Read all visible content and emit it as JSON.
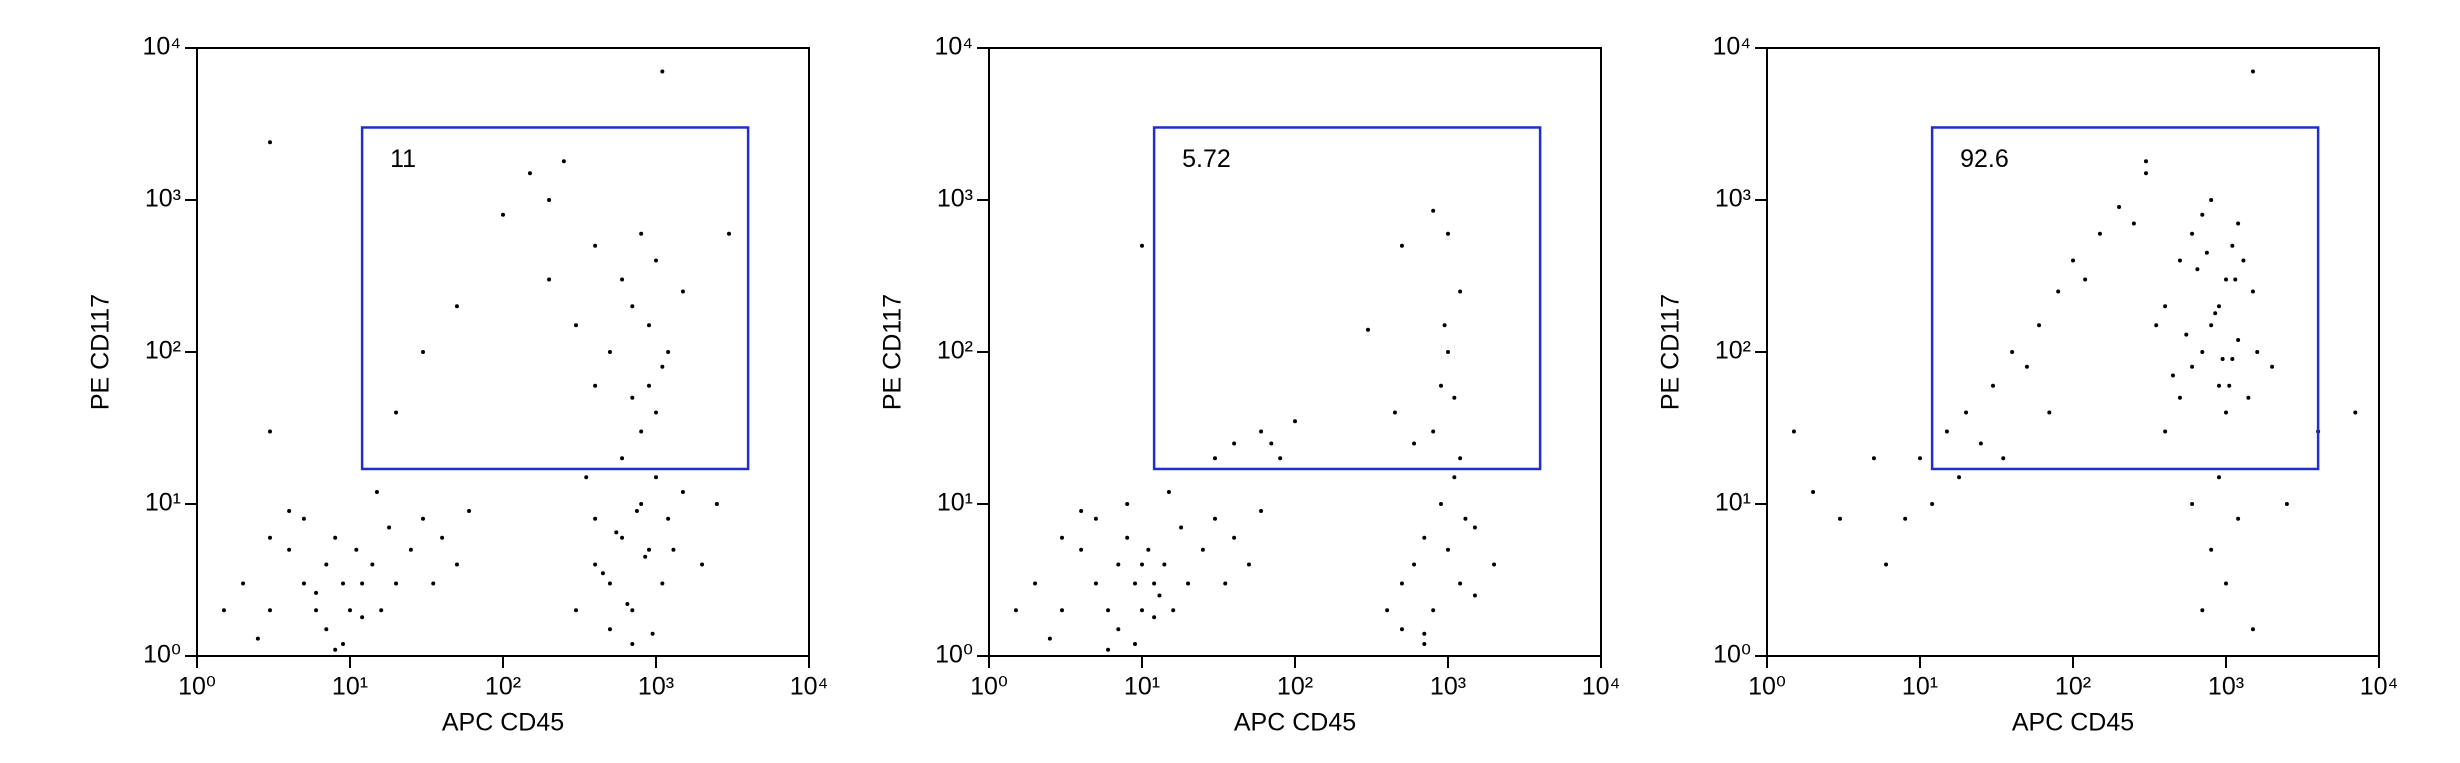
{
  "chart_data": [
    {
      "type": "scatter",
      "xlabel": "APC CD45",
      "ylabel": "PE CD117",
      "xscale": "log",
      "yscale": "log",
      "color": "#000000",
      "gate_color": "#1f2fc8",
      "xlim": [
        1,
        10000
      ],
      "ylim": [
        1,
        10000
      ],
      "xticks": [
        {
          "value": 1,
          "label": "10⁰"
        },
        {
          "value": 10,
          "label": "10¹"
        },
        {
          "value": 100,
          "label": "10²"
        },
        {
          "value": 1000,
          "label": "10³"
        },
        {
          "value": 10000,
          "label": "10⁴"
        }
      ],
      "yticks": [
        {
          "value": 1,
          "label": "10⁰"
        },
        {
          "value": 10,
          "label": "10¹"
        },
        {
          "value": 100,
          "label": "10²"
        },
        {
          "value": 1000,
          "label": "10³"
        },
        {
          "value": 10000,
          "label": "10⁴"
        }
      ],
      "gate": {
        "x": [
          12,
          4000
        ],
        "y": [
          17,
          3000
        ],
        "value": 11
      },
      "x": [
        2,
        3,
        4,
        5,
        6,
        7,
        8,
        9,
        10,
        11,
        12,
        14,
        16,
        18,
        20,
        3,
        5,
        7,
        9,
        12,
        25,
        30,
        40,
        50,
        60,
        1.5,
        2.5,
        4,
        15,
        35,
        300,
        400,
        500,
        600,
        700,
        800,
        900,
        1000,
        1100,
        1200,
        500,
        700,
        600,
        800,
        1000,
        900,
        1100,
        1300,
        1500,
        400,
        350,
        2000,
        2500,
        200,
        300,
        400,
        500,
        600,
        700,
        800,
        900,
        1000,
        1200,
        150,
        250,
        100,
        50,
        30,
        700,
        400,
        1500,
        3000,
        200,
        3,
        1100,
        20,
        3,
        8,
        6,
        450,
        550,
        650,
        750,
        850,
        950
      ],
      "y": [
        3,
        2,
        5,
        3,
        2,
        4,
        6,
        3,
        2,
        5,
        3,
        4,
        2,
        7,
        3,
        6,
        8,
        1.5,
        1.2,
        1.8,
        5,
        8,
        6,
        4,
        9,
        2,
        1.3,
        9,
        12,
        3,
        2,
        4,
        3,
        6,
        2,
        10,
        5,
        15,
        3,
        8,
        1.5,
        1.2,
        20,
        30,
        40,
        60,
        80,
        5,
        12,
        8,
        15,
        4,
        10,
        300,
        150,
        500,
        100,
        300,
        200,
        600,
        150,
        400,
        100,
        1500,
        1800,
        800,
        200,
        100,
        50,
        60,
        250,
        600,
        1000,
        2400,
        7000,
        40,
        30,
        1.1,
        2.6,
        3.5,
        6.5,
        2.2,
        9,
        4.5,
        1.4
      ]
    },
    {
      "type": "scatter",
      "xlabel": "APC CD45",
      "ylabel": "PE CD117",
      "xscale": "log",
      "yscale": "log",
      "color": "#000000",
      "gate_color": "#1f2fc8",
      "xlim": [
        1,
        10000
      ],
      "ylim": [
        1,
        10000
      ],
      "xticks": [
        {
          "value": 1,
          "label": "10⁰"
        },
        {
          "value": 10,
          "label": "10¹"
        },
        {
          "value": 100,
          "label": "10²"
        },
        {
          "value": 1000,
          "label": "10³"
        },
        {
          "value": 10000,
          "label": "10⁴"
        }
      ],
      "yticks": [
        {
          "value": 1,
          "label": "10⁰"
        },
        {
          "value": 10,
          "label": "10¹"
        },
        {
          "value": 100,
          "label": "10²"
        },
        {
          "value": 1000,
          "label": "10³"
        },
        {
          "value": 10000,
          "label": "10⁴"
        }
      ],
      "gate": {
        "x": [
          12,
          4000
        ],
        "y": [
          17,
          3000
        ],
        "value": 5.72
      },
      "x": [
        2,
        3,
        4,
        5,
        6,
        7,
        8,
        9,
        10,
        11,
        12,
        14,
        16,
        18,
        20,
        25,
        30,
        40,
        50,
        60,
        3,
        5,
        7,
        9,
        12,
        15,
        1.5,
        2.5,
        4,
        35,
        8,
        10,
        13,
        6,
        400,
        500,
        600,
        700,
        800,
        900,
        1000,
        1100,
        1200,
        1300,
        500,
        700,
        800,
        900,
        1000,
        1100,
        1200,
        600,
        1500,
        2000,
        450,
        950,
        30,
        40,
        60,
        80,
        100,
        300,
        500,
        800,
        1200,
        1000,
        10,
        700,
        1500,
        70
      ],
      "y": [
        3,
        2,
        5,
        3,
        2,
        4,
        6,
        3,
        2,
        5,
        3,
        4,
        2,
        7,
        3,
        5,
        8,
        6,
        4,
        9,
        6,
        8,
        1.5,
        1.2,
        1.8,
        12,
        2,
        1.3,
        9,
        3,
        10,
        4,
        2.5,
        1.1,
        2,
        3,
        4,
        6,
        2,
        10,
        5,
        15,
        3,
        8,
        1.5,
        1.2,
        30,
        60,
        100,
        50,
        20,
        25,
        7,
        4,
        40,
        150,
        20,
        25,
        30,
        20,
        35,
        140,
        500,
        850,
        250,
        600,
        500,
        1.4,
        2.5,
        25
      ]
    },
    {
      "type": "scatter",
      "xlabel": "APC CD45",
      "ylabel": "PE CD117",
      "xscale": "log",
      "yscale": "log",
      "color": "#000000",
      "gate_color": "#1f2fc8",
      "xlim": [
        1,
        10000
      ],
      "ylim": [
        1,
        10000
      ],
      "xticks": [
        {
          "value": 1,
          "label": "10⁰"
        },
        {
          "value": 10,
          "label": "10¹"
        },
        {
          "value": 100,
          "label": "10²"
        },
        {
          "value": 1000,
          "label": "10³"
        },
        {
          "value": 10000,
          "label": "10⁴"
        }
      ],
      "yticks": [
        {
          "value": 1,
          "label": "10⁰"
        },
        {
          "value": 10,
          "label": "10¹"
        },
        {
          "value": 100,
          "label": "10²"
        },
        {
          "value": 1000,
          "label": "10³"
        },
        {
          "value": 10000,
          "label": "10⁴"
        }
      ],
      "gate": {
        "x": [
          12,
          4000
        ],
        "y": [
          17,
          3000
        ],
        "value": 92.6
      },
      "x": [
        400,
        500,
        600,
        700,
        800,
        900,
        1000,
        1100,
        1200,
        1300,
        400,
        500,
        600,
        700,
        800,
        900,
        1000,
        1100,
        1200,
        1500,
        450,
        550,
        650,
        750,
        850,
        950,
        1050,
        1150,
        350,
        1400,
        1600,
        2000,
        10,
        15,
        20,
        30,
        40,
        60,
        80,
        100,
        150,
        200,
        300,
        25,
        50,
        120,
        250,
        8,
        12,
        18,
        35,
        70,
        5,
        3,
        2,
        1.5,
        6,
        600,
        800,
        1000,
        1200,
        700,
        900,
        1500,
        2500,
        7000,
        1500,
        300,
        4000
      ],
      "y": [
        30,
        50,
        80,
        100,
        150,
        200,
        300,
        500,
        700,
        400,
        200,
        400,
        600,
        800,
        1000,
        60,
        40,
        90,
        120,
        250,
        70,
        130,
        350,
        450,
        180,
        90,
        60,
        300,
        150,
        50,
        100,
        80,
        20,
        30,
        40,
        60,
        100,
        150,
        250,
        400,
        600,
        900,
        1500,
        25,
        80,
        300,
        700,
        8,
        10,
        15,
        20,
        40,
        20,
        8,
        12,
        30,
        4,
        10,
        5,
        3,
        8,
        2,
        15,
        1.5,
        10,
        40,
        7000,
        1800,
        30
      ]
    }
  ]
}
